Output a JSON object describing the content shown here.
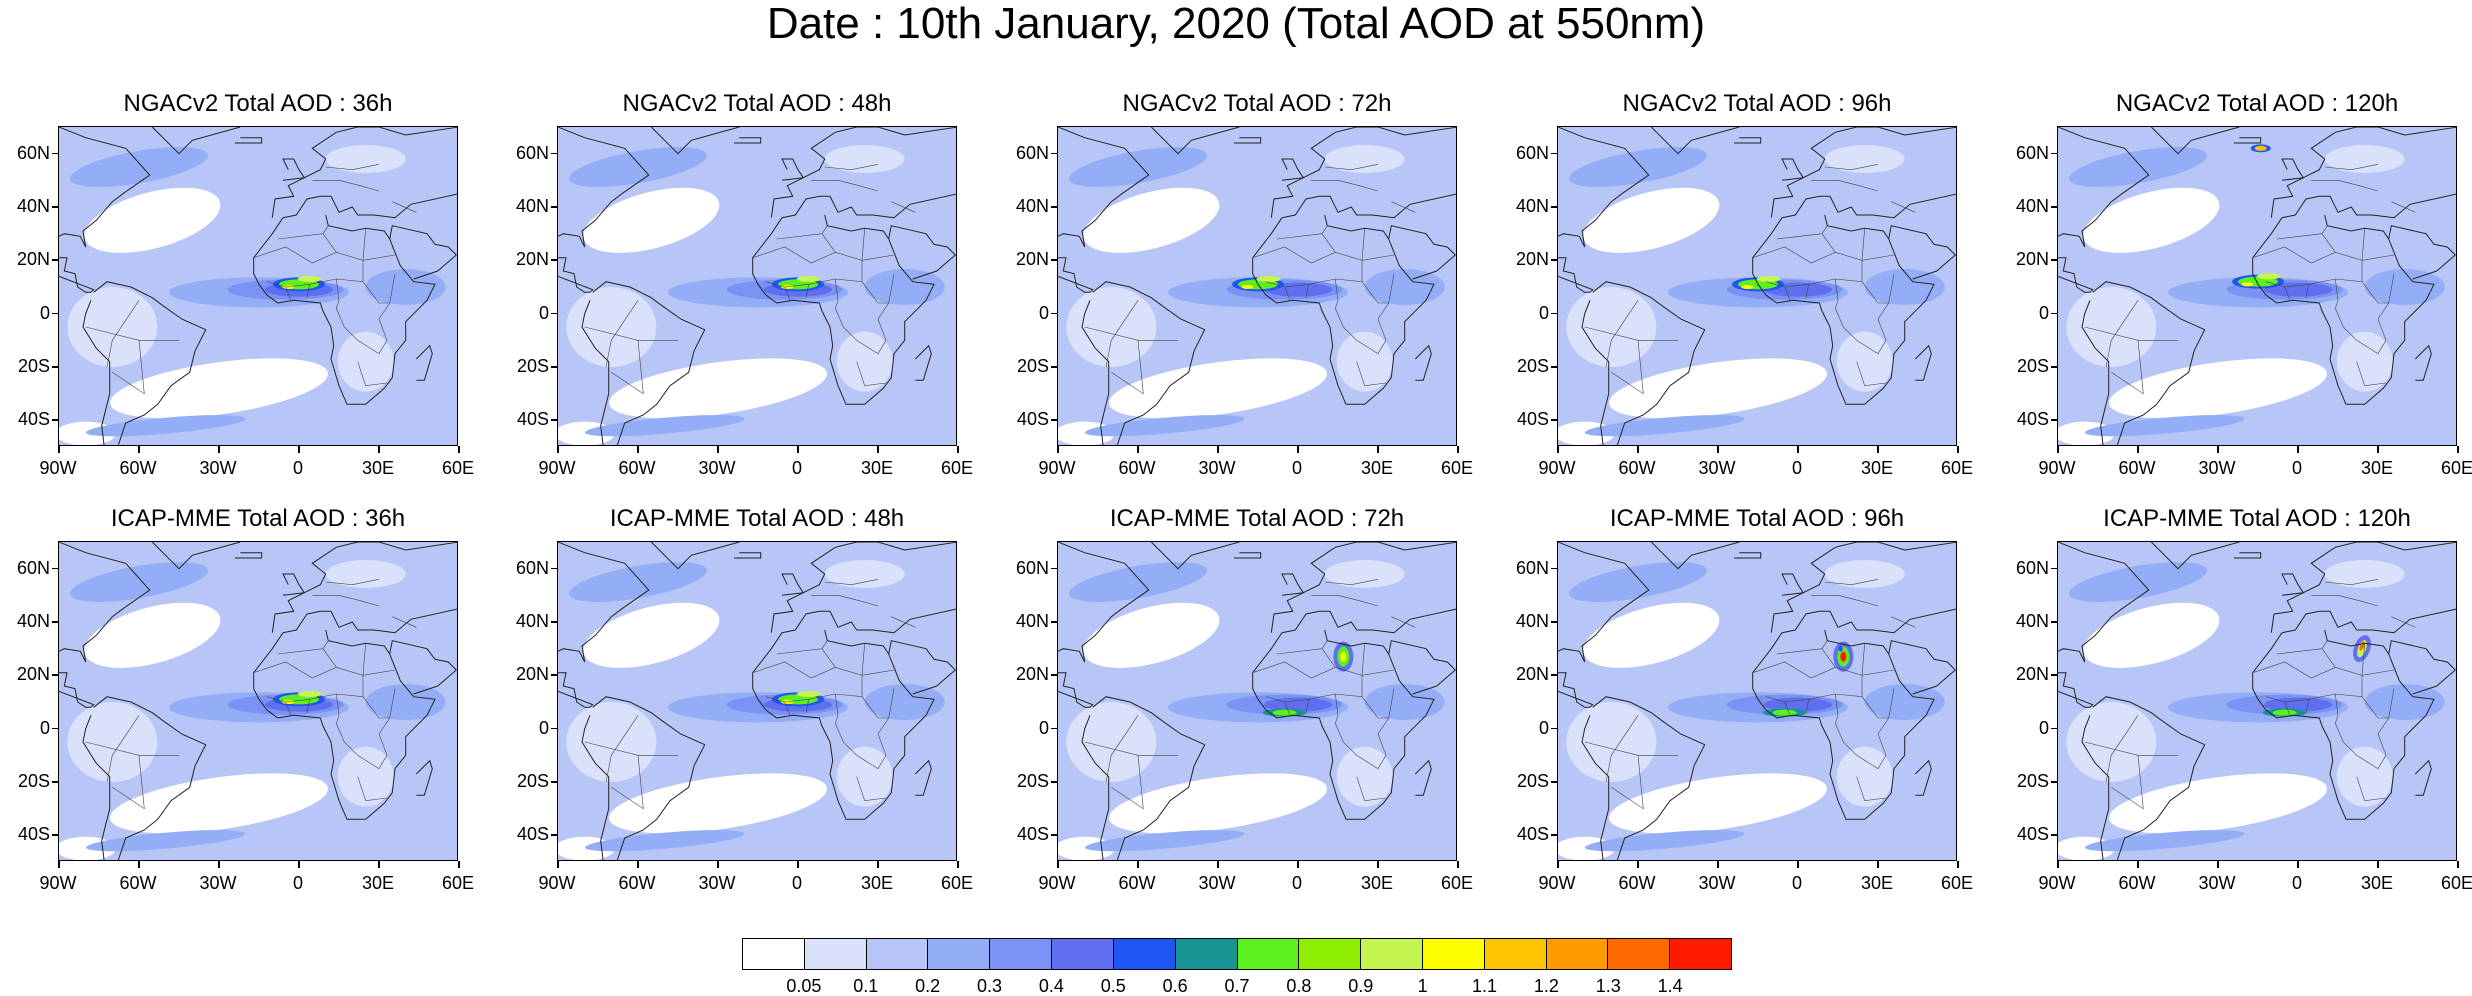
{
  "title": "Date : 10th January, 2020 (Total AOD at 550nm)",
  "panels": [
    {
      "title": "NGACv2 Total AOD : 36h",
      "model": "NGACv2",
      "lead": "36h",
      "dust": "sahel"
    },
    {
      "title": "NGACv2 Total AOD : 48h",
      "model": "NGACv2",
      "lead": "48h",
      "dust": "sahel"
    },
    {
      "title": "NGACv2 Total AOD : 72h",
      "model": "NGACv2",
      "lead": "72h",
      "dust": "sahel-west"
    },
    {
      "title": "NGACv2 Total AOD : 96h",
      "model": "NGACv2",
      "lead": "96h",
      "dust": "sahel-west"
    },
    {
      "title": "NGACv2 Total AOD : 120h",
      "model": "NGACv2",
      "lead": "120h",
      "dust": "sahel-north"
    },
    {
      "title": "ICAP-MME Total AOD : 36h",
      "model": "ICAP-MME",
      "lead": "36h",
      "dust": "sahel"
    },
    {
      "title": "ICAP-MME Total AOD : 48h",
      "model": "ICAP-MME",
      "lead": "48h",
      "dust": "sahel"
    },
    {
      "title": "ICAP-MME Total AOD : 72h",
      "model": "ICAP-MME",
      "lead": "72h",
      "dust": "libya"
    },
    {
      "title": "ICAP-MME Total AOD : 96h",
      "model": "ICAP-MME",
      "lead": "96h",
      "dust": "libya-strong"
    },
    {
      "title": "ICAP-MME Total AOD : 120h",
      "model": "ICAP-MME",
      "lead": "120h",
      "dust": "egypt"
    }
  ],
  "map": {
    "lon_range": [
      -90,
      60
    ],
    "lat_range": [
      -50,
      70
    ],
    "lat_labels": [
      "60N",
      "40N",
      "20N",
      "0",
      "20S",
      "40S"
    ],
    "lat_values": [
      60,
      40,
      20,
      0,
      -20,
      -40
    ],
    "lon_labels": [
      "90W",
      "60W",
      "30W",
      "0",
      "30E",
      "60E"
    ],
    "lon_values": [
      -90,
      -60,
      -30,
      0,
      30,
      60
    ]
  },
  "colorbar": {
    "variable": "Total AOD at 550nm",
    "levels": [
      "0.05",
      "0.1",
      "0.2",
      "0.3",
      "0.4",
      "0.5",
      "0.6",
      "0.7",
      "0.8",
      "0.9",
      "1",
      "1.1",
      "1.2",
      "1.3",
      "1.4"
    ],
    "colors": [
      "#ffffff",
      "#d9e1fb",
      "#b7c6f6",
      "#93adf6",
      "#7a92f4",
      "#5f6ff0",
      "#1f55f0",
      "#179393",
      "#5cf020",
      "#8ef000",
      "#c4f550",
      "#ffff00",
      "#ffc400",
      "#ff9a00",
      "#ff6a00",
      "#ff1a00"
    ]
  }
}
